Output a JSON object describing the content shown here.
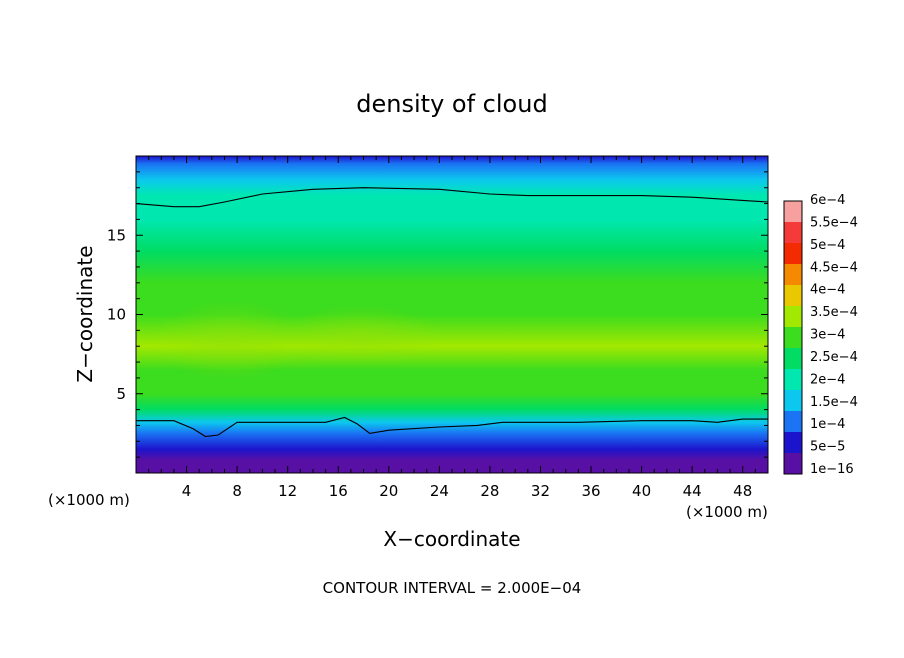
{
  "chart_data": {
    "type": "heatmap",
    "title": "density of cloud",
    "xlabel": "X−coordinate",
    "ylabel": "Z−coordinate",
    "x_unit_label": "(×1000 m)",
    "y_unit_label": "(×1000 m)",
    "xlim": [
      0,
      50
    ],
    "ylim": [
      0,
      20
    ],
    "x_ticks": [
      4,
      8,
      12,
      16,
      20,
      24,
      28,
      32,
      36,
      40,
      44,
      48
    ],
    "y_ticks": [
      5,
      10,
      15
    ],
    "colorbar_labels": [
      "6e−4",
      "5.5e−4",
      "5e−4",
      "4.5e−4",
      "4e−4",
      "3.5e−4",
      "3e−4",
      "2.5e−4",
      "2e−4",
      "1.5e−4",
      "1e−4",
      "5e−5",
      "1e−16"
    ],
    "colorbar_values": [
      0.0006,
      0.00055,
      0.0005,
      0.00045,
      0.0004,
      0.00035,
      0.0003,
      0.00025,
      0.0002,
      0.00015,
      0.0001,
      5e-05,
      1e-16
    ],
    "colorbar_colors": [
      "#f7a0a0",
      "#f53a3a",
      "#f42a00",
      "#f58a00",
      "#e9c800",
      "#a3e800",
      "#3cdc1e",
      "#00dc64",
      "#00e8b0",
      "#0cc8ee",
      "#1a74f4",
      "#1c14cc",
      "#5810a4"
    ],
    "contour_interval_text": "CONTOUR INTERVAL = 2.000E−04",
    "contour_levels": [
      0.0002
    ],
    "density_by_height": [
      {
        "z": 0.3,
        "value": 1e-16
      },
      {
        "z": 0.8,
        "value": 3e-05
      },
      {
        "z": 1.5,
        "value": 6e-05
      },
      {
        "z": 2.5,
        "value": 0.00012
      },
      {
        "z": 3.2,
        "value": 0.00019
      },
      {
        "z": 4,
        "value": 0.00026
      },
      {
        "z": 5,
        "value": 0.0003
      },
      {
        "z": 6.5,
        "value": 0.00033
      },
      {
        "z": 8,
        "value": 0.00036
      },
      {
        "z": 10,
        "value": 0.00034
      },
      {
        "z": 12,
        "value": 0.00031
      },
      {
        "z": 14,
        "value": 0.00028
      },
      {
        "z": 16,
        "value": 0.00024
      },
      {
        "z": 17.5,
        "value": 0.0002
      },
      {
        "z": 18.5,
        "value": 0.00016
      },
      {
        "z": 19.5,
        "value": 0.00012
      },
      {
        "z": 20,
        "value": 9e-05
      }
    ],
    "lower_contour": [
      [
        0,
        3.3
      ],
      [
        3,
        3.3
      ],
      [
        4.5,
        2.8
      ],
      [
        5.5,
        2.3
      ],
      [
        6.5,
        2.4
      ],
      [
        8,
        3.2
      ],
      [
        12,
        3.2
      ],
      [
        15,
        3.2
      ],
      [
        16.5,
        3.5
      ],
      [
        17.5,
        3.1
      ],
      [
        18.5,
        2.5
      ],
      [
        20,
        2.7
      ],
      [
        24,
        2.9
      ],
      [
        27,
        3.0
      ],
      [
        29,
        3.2
      ],
      [
        35,
        3.2
      ],
      [
        40,
        3.3
      ],
      [
        44,
        3.3
      ],
      [
        46,
        3.2
      ],
      [
        48,
        3.4
      ],
      [
        50,
        3.4
      ]
    ],
    "upper_contour": [
      [
        0,
        17.0
      ],
      [
        3,
        16.8
      ],
      [
        5,
        16.8
      ],
      [
        7,
        17.1
      ],
      [
        10,
        17.6
      ],
      [
        14,
        17.9
      ],
      [
        18,
        18.0
      ],
      [
        24,
        17.9
      ],
      [
        28,
        17.6
      ],
      [
        31,
        17.5
      ],
      [
        36,
        17.5
      ],
      [
        40,
        17.5
      ],
      [
        44,
        17.4
      ],
      [
        48,
        17.2
      ],
      [
        50,
        17.1
      ]
    ]
  }
}
